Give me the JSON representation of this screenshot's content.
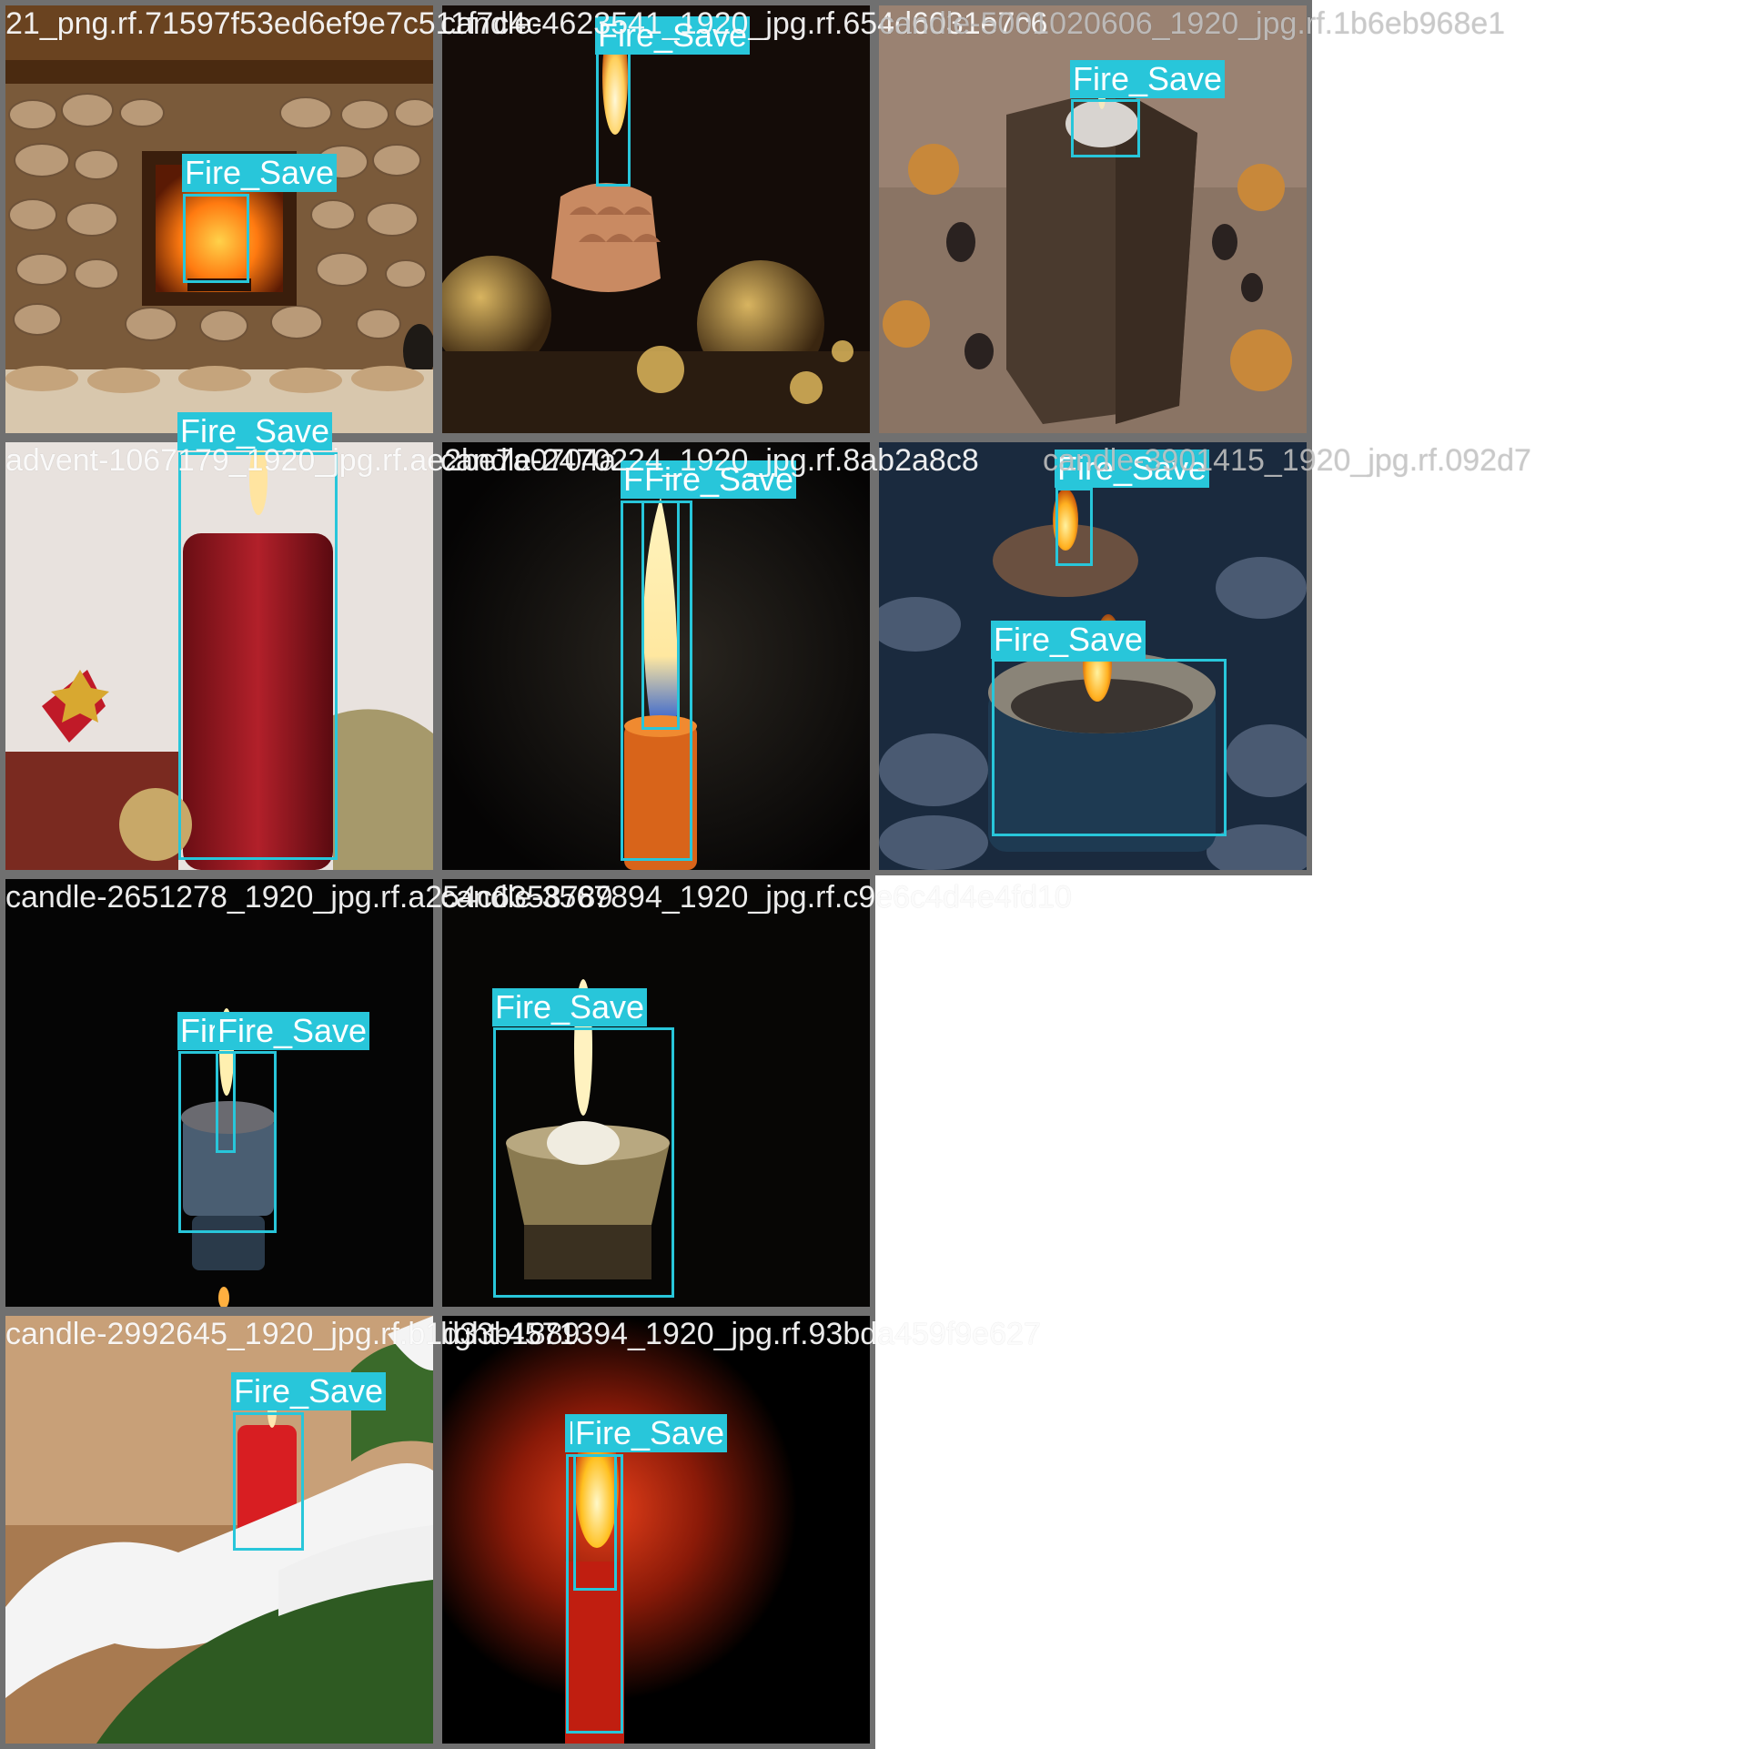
{
  "filenames": [
    "21_png.rf.71597f53ed6ef9e7c511f7c4c",
    "candle-4623541_1920_jpg.rf.654d6031e7c6",
    "candle-5001020606_1920_jpg.rf.1b6eb968e1",
    "advent-1067179_1920_jpg.rf.ae2be7a0704a",
    "candle-2470224_1920_jpg.rf.8ab2a8c8",
    "candle-3901415_1920_jpg.rf.092d7",
    "candle-2651278_1920_jpg.rf.a254c6358789",
    "candle-3567894_1920_jpg.rf.c9e6c4d4e4fd10",
    "candle-2992645_1920_jpg.rf.b1d33b1889",
    "light-4571394_1920_jpg.rf.93bda459f9e627"
  ],
  "detection_label": "Fire_Save",
  "box_color": "#28c6da",
  "border_color": "#707070"
}
